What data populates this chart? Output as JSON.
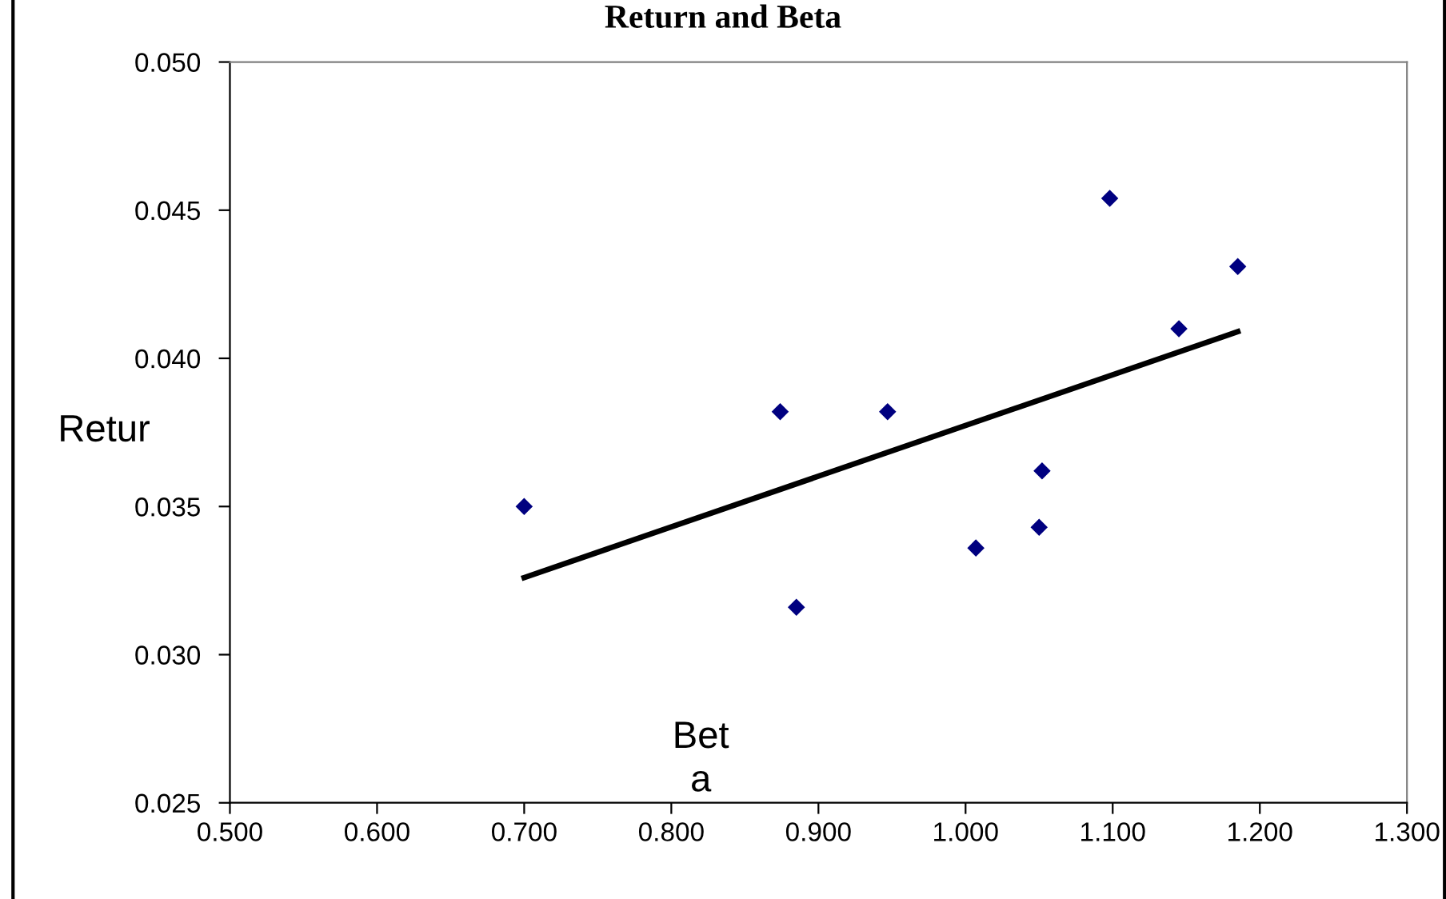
{
  "chart_data": {
    "type": "scatter",
    "title": "Return and Beta",
    "xlabel": "Bet\na",
    "ylabel": "Retur",
    "series": [
      {
        "color": "#000080",
        "marker": "diamond",
        "x": [
          0.7,
          0.874,
          0.885,
          0.947,
          1.007,
          1.05,
          1.052,
          1.098,
          1.145,
          1.185
        ],
        "values": [
          0.035,
          0.0382,
          0.0316,
          0.0382,
          0.0336,
          0.0343,
          0.0362,
          0.0454,
          0.041,
          0.0431
        ]
      },
      {
        "type": "line",
        "color": "#000000",
        "x": [
          0.7,
          1.185
        ],
        "values": [
          0.0326,
          0.0409
        ]
      }
    ],
    "xlim": [
      0.5,
      1.3
    ],
    "xticks": [
      {
        "value": 0.5,
        "label": "0.500"
      },
      {
        "value": 0.6,
        "label": "0.600"
      },
      {
        "value": 0.7,
        "label": "0.700"
      },
      {
        "value": 0.8,
        "label": "0.800"
      },
      {
        "value": 0.9,
        "label": "0.900"
      },
      {
        "value": 1.0,
        "label": "1.000"
      },
      {
        "value": 1.1,
        "label": "1.100"
      },
      {
        "value": 1.2,
        "label": "1.200"
      },
      {
        "value": 1.3,
        "label": "1.300"
      }
    ],
    "ylim": [
      0.025,
      0.05
    ],
    "yticks": [
      {
        "value": 0.025,
        "label": "0.025"
      },
      {
        "value": 0.03,
        "label": "0.030"
      },
      {
        "value": 0.035,
        "label": "0.035"
      },
      {
        "value": 0.04,
        "label": "0.040"
      },
      {
        "value": 0.045,
        "label": "0.045"
      },
      {
        "value": 0.05,
        "label": "0.050"
      }
    ],
    "grid": false,
    "legend": false
  }
}
